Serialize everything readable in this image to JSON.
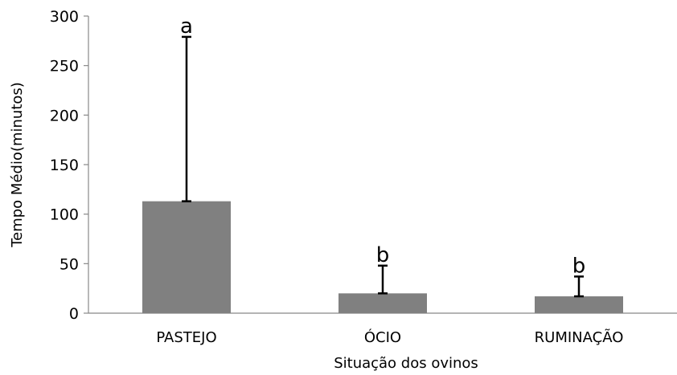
{
  "chart_data": {
    "type": "bar",
    "title": "",
    "xlabel": "Situação dos ovinos",
    "ylabel": "Tempo Médio(minutos)",
    "ylim": [
      0,
      300
    ],
    "yticks": [
      0,
      50,
      100,
      150,
      200,
      250,
      300
    ],
    "categories": [
      "PASTEJO",
      "ÓCIO",
      "RUMINAÇÃO"
    ],
    "values": [
      113,
      20,
      17
    ],
    "error_plus": [
      166,
      28,
      20
    ],
    "significance_letters": [
      "a",
      "b",
      "b"
    ],
    "bar_color": "#808080",
    "grid": false,
    "legend": "none"
  }
}
